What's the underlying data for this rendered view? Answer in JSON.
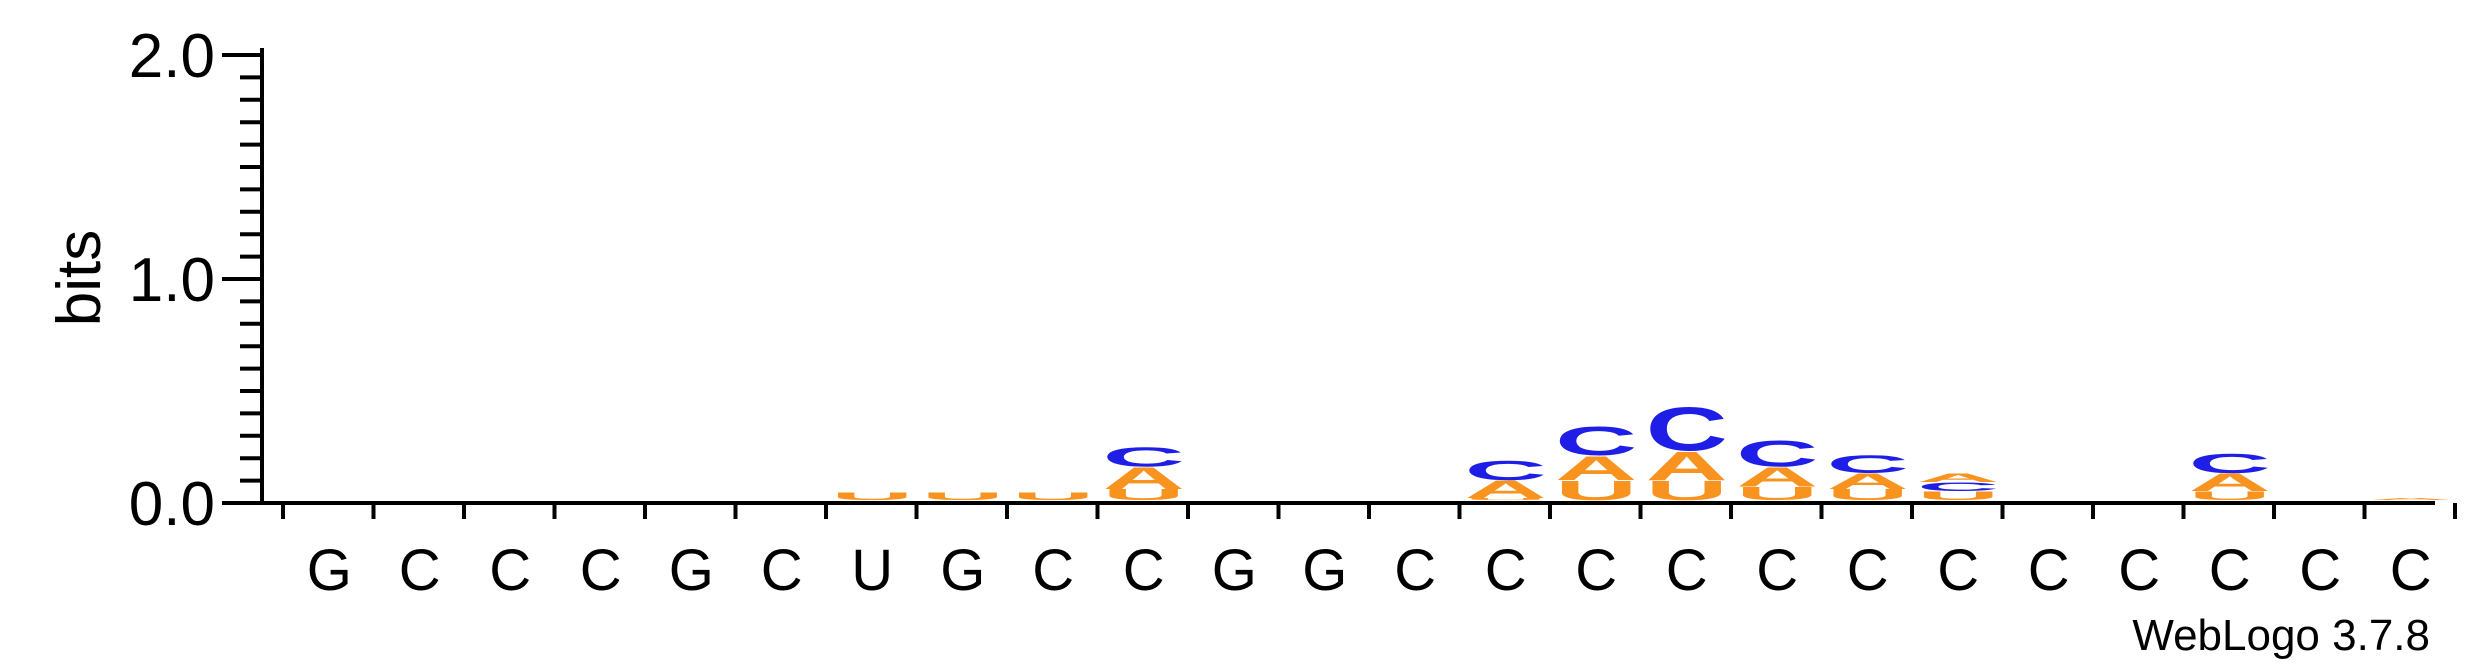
{
  "chart_data": {
    "type": "sequence-logo",
    "ylabel": "bits",
    "ylim": [
      0,
      2.0
    ],
    "yticks": [
      "0.0",
      "1.0",
      "2.0"
    ],
    "credit": "WebLogo 3.7.8",
    "colors": {
      "A": "#F7931E",
      "U": "#F7931E",
      "C": "#1E1EE6",
      "G": "#F7931E"
    },
    "positions": [
      {
        "label": "G",
        "stack": []
      },
      {
        "label": "C",
        "stack": []
      },
      {
        "label": "C",
        "stack": []
      },
      {
        "label": "C",
        "stack": []
      },
      {
        "label": "G",
        "stack": []
      },
      {
        "label": "C",
        "stack": []
      },
      {
        "label": "U",
        "stack": [
          {
            "letter": "U",
            "height": 0.035
          }
        ]
      },
      {
        "label": "G",
        "stack": [
          {
            "letter": "U",
            "height": 0.035
          }
        ]
      },
      {
        "label": "C",
        "stack": [
          {
            "letter": "U",
            "height": 0.035
          }
        ]
      },
      {
        "label": "C",
        "stack": [
          {
            "letter": "U",
            "height": 0.05
          },
          {
            "letter": "A",
            "height": 0.1
          },
          {
            "letter": "C",
            "height": 0.09
          }
        ]
      },
      {
        "label": "G",
        "stack": []
      },
      {
        "label": "G",
        "stack": []
      },
      {
        "label": "C",
        "stack": []
      },
      {
        "label": "C",
        "stack": [
          {
            "letter": "U",
            "height": 0.01
          },
          {
            "letter": "A",
            "height": 0.08
          },
          {
            "letter": "C",
            "height": 0.09
          }
        ]
      },
      {
        "label": "C",
        "stack": [
          {
            "letter": "U",
            "height": 0.09
          },
          {
            "letter": "A",
            "height": 0.11
          },
          {
            "letter": "C",
            "height": 0.13
          }
        ]
      },
      {
        "label": "C",
        "stack": [
          {
            "letter": "U",
            "height": 0.09
          },
          {
            "letter": "A",
            "height": 0.13
          },
          {
            "letter": "C",
            "height": 0.2
          }
        ]
      },
      {
        "label": "C",
        "stack": [
          {
            "letter": "U",
            "height": 0.06
          },
          {
            "letter": "A",
            "height": 0.09
          },
          {
            "letter": "C",
            "height": 0.12
          }
        ]
      },
      {
        "label": "C",
        "stack": [
          {
            "letter": "U",
            "height": 0.05
          },
          {
            "letter": "A",
            "height": 0.07
          },
          {
            "letter": "C",
            "height": 0.08
          }
        ]
      },
      {
        "label": "C",
        "stack": [
          {
            "letter": "U",
            "height": 0.04
          },
          {
            "letter": "C",
            "height": 0.04
          },
          {
            "letter": "A",
            "height": 0.04
          }
        ]
      },
      {
        "label": "C",
        "stack": []
      },
      {
        "label": "C",
        "stack": []
      },
      {
        "label": "C",
        "stack": [
          {
            "letter": "U",
            "height": 0.04
          },
          {
            "letter": "A",
            "height": 0.08
          },
          {
            "letter": "C",
            "height": 0.09
          }
        ]
      },
      {
        "label": "C",
        "stack": []
      },
      {
        "label": "C",
        "stack": [
          {
            "letter": "A",
            "height": 0.01
          }
        ]
      }
    ]
  }
}
